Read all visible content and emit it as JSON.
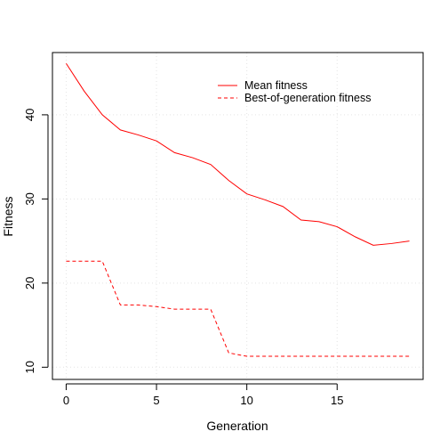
{
  "chart_data": {
    "type": "line",
    "title": "",
    "xlabel": "Generation",
    "ylabel": "Fitness",
    "xlim": [
      -0.76,
      19.76
    ],
    "ylim": [
      8.55,
      47.4
    ],
    "x_ticks": [
      0,
      5,
      10,
      15
    ],
    "y_ticks": [
      10,
      20,
      30,
      40
    ],
    "grid": true,
    "legend_position": "top-right",
    "x": [
      0,
      1,
      2,
      3,
      4,
      5,
      6,
      7,
      8,
      9,
      10,
      11,
      12,
      13,
      14,
      15,
      16,
      17,
      18,
      19
    ],
    "series": [
      {
        "name": "Mean fitness",
        "line_style": "solid",
        "color": "#ff0000",
        "values": [
          46.1,
          42.8,
          40.0,
          38.2,
          37.6,
          36.9,
          35.5,
          34.9,
          34.1,
          32.2,
          30.6,
          29.9,
          29.1,
          27.5,
          27.3,
          26.7,
          25.5,
          24.5,
          24.7,
          25.0
        ]
      },
      {
        "name": "Best-of-generation fitness",
        "line_style": "dashed",
        "color": "#ff0000",
        "values": [
          22.6,
          22.6,
          22.6,
          17.4,
          17.4,
          17.2,
          16.9,
          16.9,
          16.9,
          11.7,
          11.3,
          11.3,
          11.3,
          11.3,
          11.3,
          11.3,
          11.3,
          11.3,
          11.3,
          11.3
        ]
      }
    ]
  }
}
